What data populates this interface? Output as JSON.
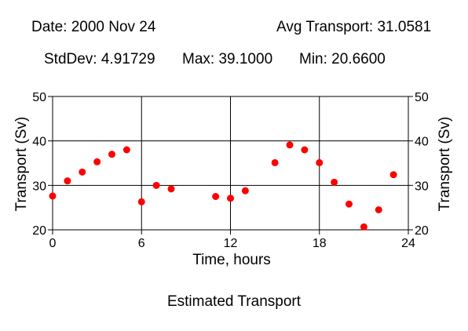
{
  "header": {
    "date": "Date: 2000 Nov 24",
    "avg": "Avg Transport: 31.0581",
    "stddev": "StdDev: 4.91729",
    "max": "Max: 39.1000",
    "min": "Min: 20.6600"
  },
  "caption": "Estimated Transport",
  "chart_data": {
    "type": "scatter",
    "title": "Estimated Transport",
    "xlabel": "Time, hours",
    "ylabel": "Transport (Sv)",
    "xlim": [
      0,
      24
    ],
    "ylim": [
      20,
      50
    ],
    "x_ticks": [
      0,
      6,
      12,
      18,
      24
    ],
    "y_ticks": [
      20,
      30,
      40,
      50
    ],
    "grid": true,
    "point_color": "#ff0000",
    "series": [
      {
        "x": [
          0,
          1,
          2,
          3,
          4,
          5,
          6,
          7,
          8,
          11,
          12,
          13,
          15,
          16,
          17,
          18,
          19,
          20,
          21,
          22,
          23
        ],
        "y": [
          27.6,
          31.0,
          33.0,
          35.3,
          37.0,
          38.0,
          26.3,
          30.0,
          29.2,
          27.5,
          27.1,
          28.8,
          35.1,
          39.1,
          38.0,
          35.1,
          30.7,
          25.8,
          20.66,
          24.5,
          32.4
        ]
      }
    ]
  }
}
